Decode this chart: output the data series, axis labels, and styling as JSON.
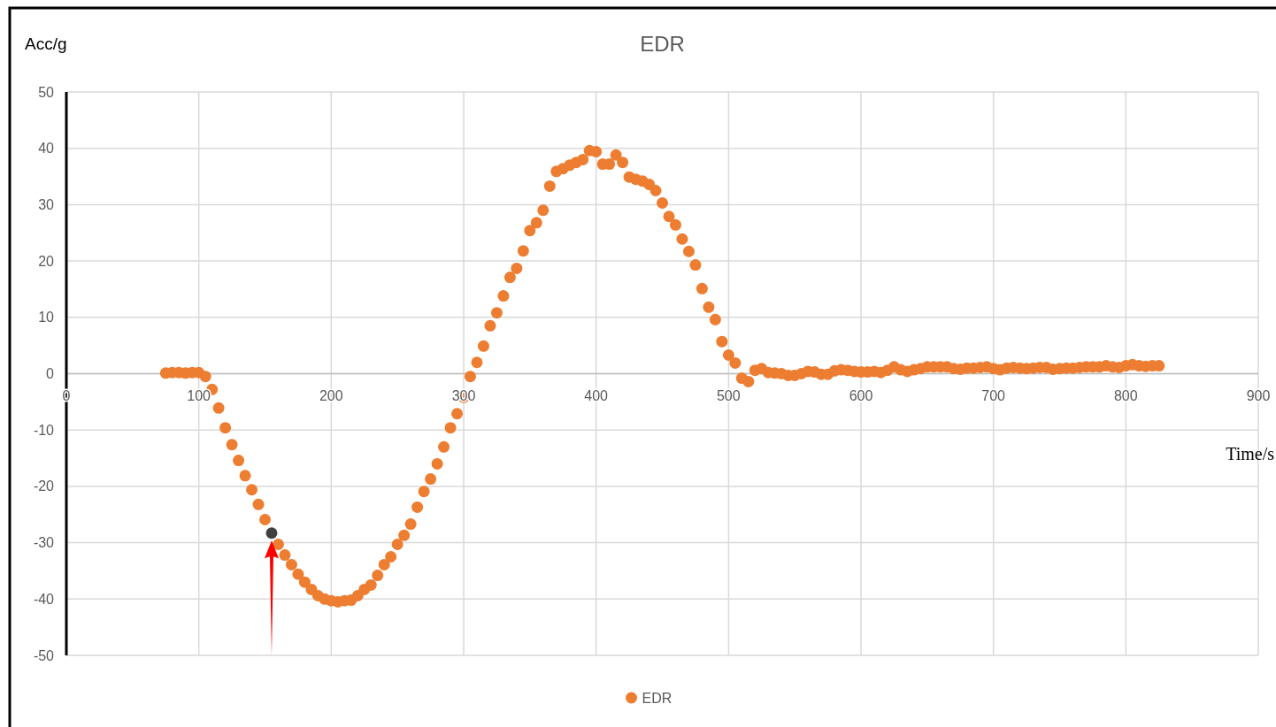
{
  "chart_data": {
    "type": "scatter",
    "title": "EDR",
    "xlabel": "Time/s",
    "ylabel": "Acc/g",
    "xlim": [
      0,
      900
    ],
    "xticks": [
      0,
      100,
      200,
      300,
      400,
      500,
      600,
      700,
      800,
      900
    ],
    "ylim": [
      -50,
      50
    ],
    "yticks": [
      -50,
      -40,
      -30,
      -20,
      -10,
      0,
      10,
      20,
      30,
      40,
      50
    ],
    "grid": true,
    "legend": "bottom",
    "marker": "circle",
    "series": [
      {
        "name": "EDR",
        "color": "#ed7d31",
        "x": [
          75,
          80,
          85,
          90,
          95,
          100,
          105,
          110,
          115,
          120,
          125,
          130,
          135,
          140,
          145,
          150,
          160,
          165,
          170,
          175,
          180,
          185,
          190,
          195,
          200,
          205,
          210,
          215,
          220,
          225,
          230,
          235,
          240,
          245,
          250,
          255,
          260,
          265,
          270,
          275,
          280,
          285,
          290,
          295,
          300,
          305,
          310,
          315,
          320,
          325,
          330,
          335,
          340,
          345,
          350,
          355,
          360,
          365,
          370,
          375,
          380,
          385,
          390,
          395,
          400,
          405,
          410,
          415,
          420,
          425,
          430,
          435,
          440,
          445,
          450,
          455,
          460,
          465,
          470,
          475,
          480,
          485,
          490,
          495,
          500,
          505,
          510,
          515,
          520,
          525,
          530,
          535,
          540,
          545,
          550,
          555,
          560,
          565,
          570,
          575,
          580,
          585,
          590,
          595,
          600,
          605,
          610,
          615,
          620,
          625,
          630,
          635,
          640,
          645,
          650,
          655,
          660,
          665,
          670,
          675,
          680,
          685,
          690,
          695,
          700,
          705,
          710,
          715,
          720,
          725,
          730,
          735,
          740,
          745,
          750,
          755,
          760,
          765,
          770,
          775,
          780,
          785,
          790,
          795,
          800,
          805,
          810,
          815,
          820,
          825
        ],
        "values": [
          0.1,
          0.2,
          0.2,
          0.1,
          0.2,
          0.2,
          -0.5,
          -2.8,
          -6.1,
          -9.6,
          -12.6,
          -15.4,
          -18.1,
          -20.6,
          -23.2,
          -25.9,
          -30.3,
          -32.2,
          -33.9,
          -35.6,
          -37.0,
          -38.3,
          -39.4,
          -40.0,
          -40.3,
          -40.5,
          -40.3,
          -40.2,
          -39.4,
          -38.3,
          -37.5,
          -35.8,
          -33.9,
          -32.5,
          -30.3,
          -28.7,
          -26.7,
          -23.7,
          -20.9,
          -18.7,
          -16.0,
          -13.0,
          -9.6,
          -7.1,
          -4.2,
          -0.5,
          2.0,
          4.9,
          8.5,
          10.8,
          13.8,
          17.1,
          18.7,
          21.8,
          25.4,
          26.8,
          29.0,
          33.3,
          35.9,
          36.4,
          37.0,
          37.5,
          38.0,
          39.6,
          39.4,
          37.2,
          37.2,
          38.8,
          37.5,
          34.9,
          34.5,
          34.2,
          33.6,
          32.5,
          30.3,
          27.9,
          26.4,
          23.9,
          21.7,
          19.3,
          15.1,
          11.8,
          9.6,
          5.7,
          3.3,
          1.9,
          -0.8,
          -1.4,
          0.6,
          0.9,
          0.2,
          0.1,
          0.0,
          -0.3,
          -0.3,
          0.0,
          0.4,
          0.3,
          -0.1,
          -0.1,
          0.5,
          0.7,
          0.6,
          0.4,
          0.3,
          0.3,
          0.4,
          0.2,
          0.6,
          1.2,
          0.7,
          0.4,
          0.7,
          0.9,
          1.2,
          1.2,
          1.2,
          1.2,
          0.9,
          0.8,
          1.0,
          1.0,
          1.1,
          1.2,
          0.9,
          0.7,
          1.0,
          1.1,
          1.0,
          0.9,
          1.0,
          1.1,
          1.1,
          0.8,
          0.9,
          1.0,
          1.0,
          1.1,
          1.2,
          1.2,
          1.2,
          1.4,
          1.2,
          1.1,
          1.4,
          1.6,
          1.4,
          1.3,
          1.4,
          1.4
        ]
      },
      {
        "color": "#404040",
        "x": [
          155
        ],
        "values": [
          -28.3
        ]
      }
    ]
  }
}
